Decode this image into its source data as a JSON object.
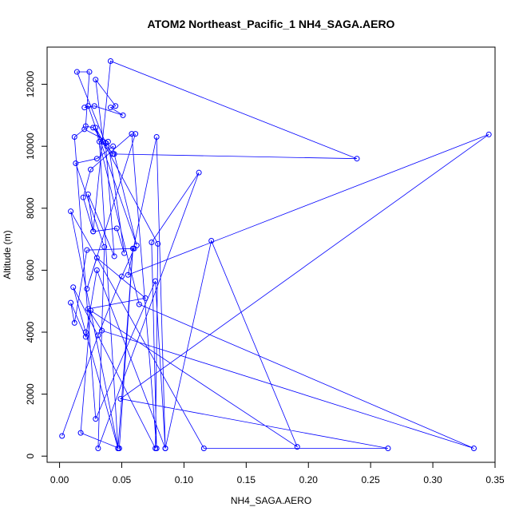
{
  "chart_data": {
    "type": "line",
    "title": "ATOM2 Northeast_Pacific_1 NH4_SAGA.AERO",
    "xlabel": "NH4_SAGA.AERO",
    "ylabel": "Altitude (m)",
    "xlim": [
      -0.01,
      0.35
    ],
    "ylim": [
      -200,
      13200
    ],
    "xticks": [
      0.0,
      0.05,
      0.1,
      0.15,
      0.2,
      0.25,
      0.3,
      0.35
    ],
    "xtick_labels": [
      "0.00",
      "0.05",
      "0.10",
      "0.15",
      "0.20",
      "0.25",
      "0.30",
      "0.35"
    ],
    "yticks": [
      0,
      2000,
      4000,
      6000,
      8000,
      10000,
      12000
    ],
    "ytick_labels": [
      "0",
      "2000",
      "4000",
      "6000",
      "8000",
      "10000",
      "12000"
    ],
    "grid": false,
    "color": "#0000ff",
    "series": [
      {
        "x": [
          0.002,
          0.031,
          0.05,
          0.06,
          0.022,
          0.012,
          0.009,
          0.021,
          0.03,
          0.085,
          0.077,
          0.029,
          0.012,
          0.02,
          0.039,
          0.052,
          0.046,
          0.027,
          0.019,
          0.025,
          0.058,
          0.078,
          0.074,
          0.112,
          0.031,
          0.036,
          0.013,
          0.03,
          0.043,
          0.044,
          0.062,
          0.023,
          0.02,
          0.028,
          0.051,
          0.041,
          0.045,
          0.029,
          0.035,
          0.027,
          0.021,
          0.024,
          0.014,
          0.038,
          0.043,
          0.239,
          0.041,
          0.027,
          0.023,
          0.044,
          0.037,
          0.032,
          0.047,
          0.059,
          0.048,
          0.017,
          0.025,
          0.191,
          0.122,
          0.085,
          0.078,
          0.055,
          0.345,
          0.049,
          0.264,
          0.116,
          0.009,
          0.047,
          0.021,
          0.011,
          0.077,
          0.079,
          0.029,
          0.064,
          0.333,
          0.034,
          0.023,
          0.069,
          0.03,
          0.022,
          0.061
        ],
        "y": [
          650,
          3900,
          5800,
          6700,
          6650,
          4300,
          4950,
          3850,
          6000,
          250,
          5650,
          1200,
          10300,
          10550,
          10150,
          6550,
          7350,
          7250,
          8350,
          9250,
          10400,
          250,
          6900,
          9150,
          250,
          6750,
          9450,
          9600,
          10000,
          9750,
          6800,
          11300,
          11250,
          11300,
          11000,
          11250,
          11300,
          12150,
          10150,
          10600,
          10650,
          12400,
          12400,
          10000,
          9750,
          9600,
          12750,
          7250,
          8450,
          6450,
          10100,
          10150,
          250,
          6700,
          250,
          750,
          4700,
          300,
          6950,
          250,
          10300,
          5850,
          10380,
          1850,
          250,
          250,
          7900,
          250,
          4000,
          5450,
          250,
          6850,
          10600,
          4900,
          250,
          4050,
          4750,
          5100,
          6400,
          5400,
          10400
        ]
      }
    ]
  }
}
